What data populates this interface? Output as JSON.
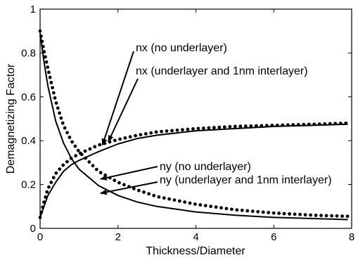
{
  "chart_data": {
    "type": "line",
    "title": "",
    "xlabel": "Thickness/Diameter",
    "ylabel": "Demagnetizing Factor",
    "xlim": [
      0,
      8
    ],
    "ylim": [
      0,
      1
    ],
    "xticks": [
      "0",
      "2",
      "4",
      "6",
      "8"
    ],
    "yticks": [
      "0",
      "0.2",
      "0.4",
      "0.6",
      "0.8",
      "1"
    ],
    "grid": false,
    "legend": "none",
    "series": [
      {
        "name": "nx (no underlayer)",
        "style": "solid",
        "x": [
          0.0,
          0.1,
          0.2,
          0.4,
          0.6,
          0.8,
          1.0,
          1.5,
          2.0,
          2.5,
          3.0,
          4.0,
          5.0,
          6.0,
          7.0,
          7.9
        ],
        "y": [
          0.05,
          0.1,
          0.15,
          0.21,
          0.26,
          0.29,
          0.31,
          0.35,
          0.385,
          0.41,
          0.425,
          0.445,
          0.455,
          0.465,
          0.47,
          0.475
        ]
      },
      {
        "name": "nx (underlayer and 1nm interlayer)",
        "style": "dotted",
        "x": [
          0.0,
          0.1,
          0.2,
          0.4,
          0.6,
          0.8,
          1.0,
          1.5,
          2.0,
          2.5,
          3.0,
          4.0,
          5.0,
          6.0,
          7.0,
          7.9
        ],
        "y": [
          0.05,
          0.12,
          0.18,
          0.25,
          0.29,
          0.32,
          0.34,
          0.38,
          0.405,
          0.425,
          0.44,
          0.455,
          0.465,
          0.47,
          0.475,
          0.48
        ]
      },
      {
        "name": "ny (no underlayer)",
        "style": "solid",
        "x": [
          0.0,
          0.1,
          0.2,
          0.4,
          0.6,
          0.8,
          1.0,
          1.5,
          2.0,
          2.5,
          3.0,
          4.0,
          5.0,
          6.0,
          7.0,
          7.9
        ],
        "y": [
          0.89,
          0.76,
          0.65,
          0.49,
          0.39,
          0.32,
          0.27,
          0.195,
          0.15,
          0.12,
          0.1,
          0.075,
          0.06,
          0.05,
          0.045,
          0.04
        ]
      },
      {
        "name": "ny (underlayer and 1nm interlayer)",
        "style": "dotted",
        "x": [
          0.0,
          0.1,
          0.2,
          0.4,
          0.6,
          0.8,
          1.0,
          1.5,
          2.0,
          2.5,
          3.0,
          4.0,
          5.0,
          6.0,
          7.0,
          7.9
        ],
        "y": [
          0.9,
          0.81,
          0.73,
          0.58,
          0.47,
          0.4,
          0.35,
          0.26,
          0.21,
          0.175,
          0.145,
          0.11,
          0.085,
          0.07,
          0.06,
          0.055
        ]
      }
    ],
    "annotations": [
      {
        "text": "nx (no underlayer)",
        "target": [
          1.6,
          0.38
        ]
      },
      {
        "text": "nx (underlayer and 1nm interlayer)",
        "target": [
          1.75,
          0.395
        ]
      },
      {
        "text": "ny (no underlayer)",
        "target": [
          1.55,
          0.225
        ]
      },
      {
        "text": "ny (underlayer and 1nm interlayer)",
        "target": [
          1.55,
          0.16
        ]
      }
    ]
  }
}
